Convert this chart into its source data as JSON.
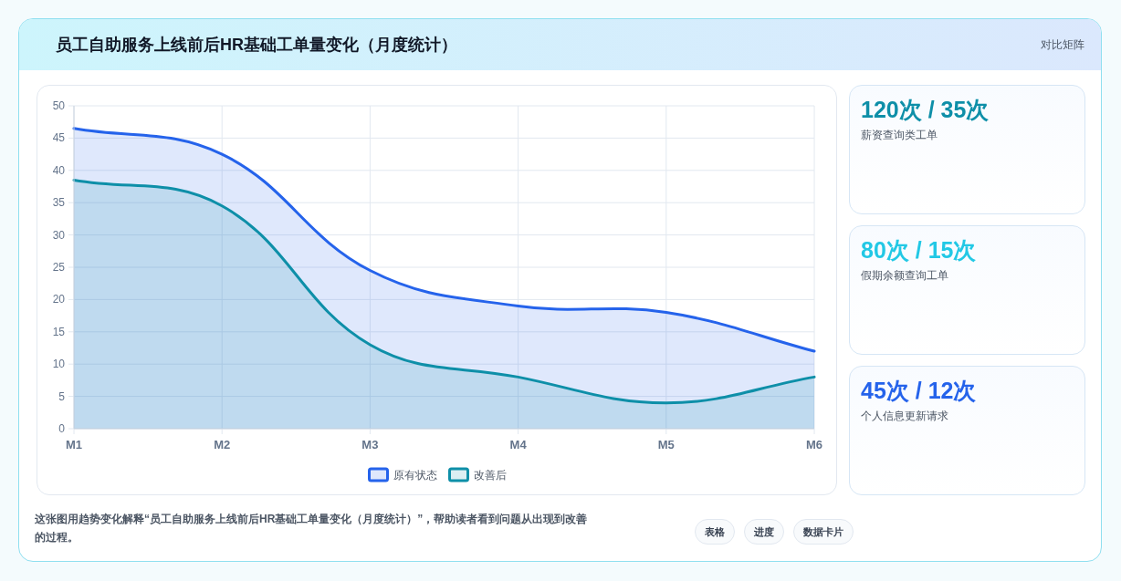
{
  "chart_data": [
    {
      "type": "area",
      "title": "员工自助服务上线前后HR基础工单量变化（月度统计）",
      "categories": [
        "M1",
        "M2",
        "M3",
        "M4",
        "M5",
        "M6"
      ],
      "series": [
        {
          "name": "原有状态",
          "color": "#2563eb",
          "values": [
            46.5,
            42.5,
            24.5,
            19,
            18,
            12
          ]
        },
        {
          "name": "改善后",
          "color": "#0e8fa8",
          "values": [
            38.5,
            34.5,
            13,
            8,
            4,
            8
          ]
        }
      ],
      "ylim": [
        0,
        50
      ],
      "yticks": [
        0,
        5,
        10,
        15,
        20,
        25,
        30,
        35,
        40,
        45,
        50
      ],
      "grid": true,
      "legend": "bottom",
      "annotations": [
        "对比矩阵",
        "这张图用趋势变化解释“员工自助服务上线前后HR基础工单量变化（月度统计）”，帮助读者看到问题从出现到改善的过程。",
        "表格",
        "进度",
        "数据卡片"
      ]
    },
    {
      "type": "other",
      "annotations": [
        "120次 / 35次",
        "薪资查询类工单",
        "80次 / 15次",
        "假期余额查询工单",
        "45次 / 12次",
        "个人信息更新请求"
      ],
      "colors": [
        "#0e8fa8",
        "#22c8e5",
        "#2563eb"
      ]
    }
  ]
}
